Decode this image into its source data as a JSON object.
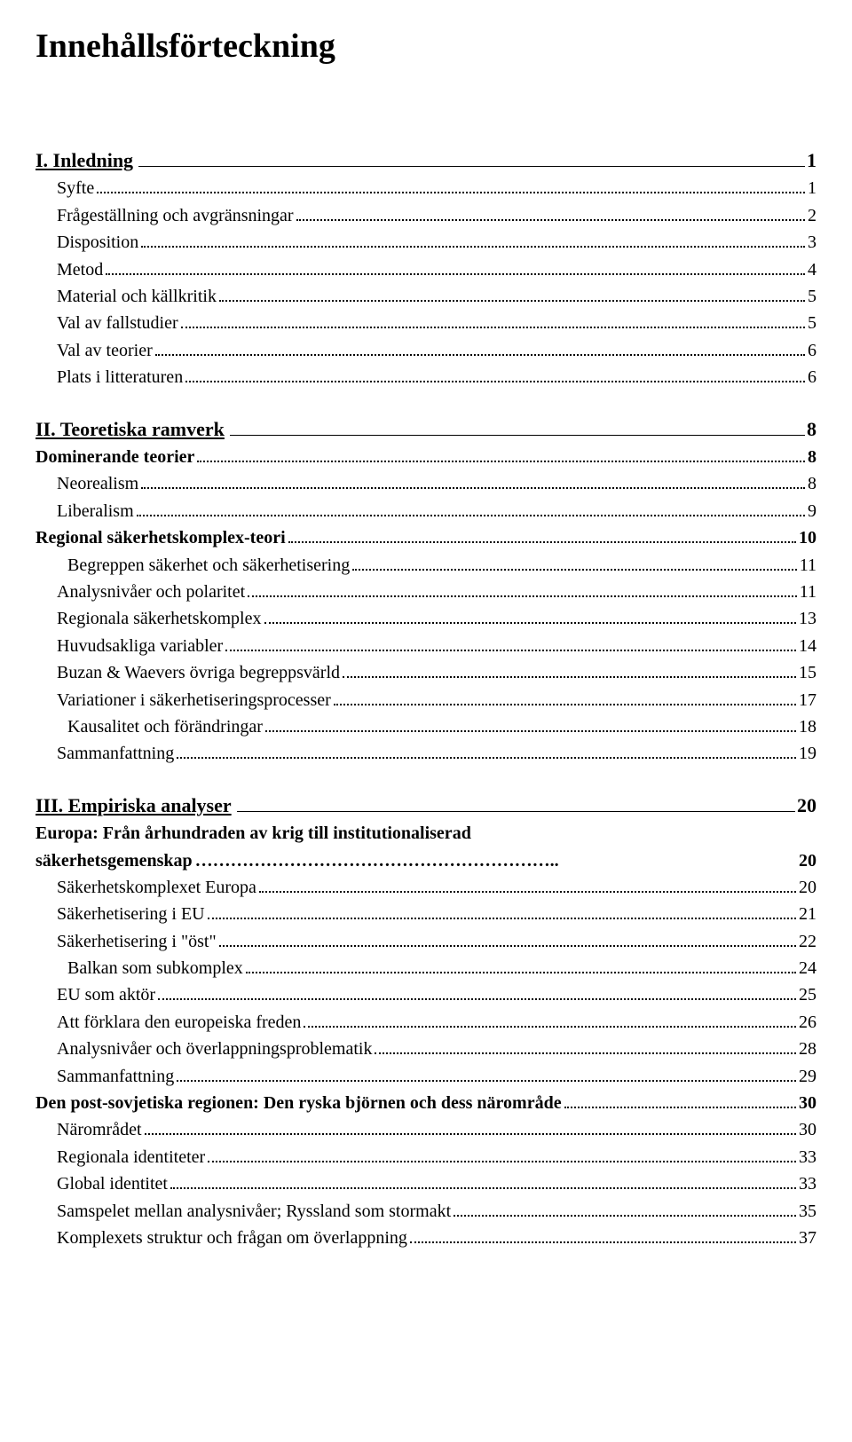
{
  "title": "Innehållsförteckning",
  "sections": [
    {
      "heading": {
        "roman": "I. Inledning",
        "page": "1"
      },
      "entries": [
        {
          "label": "Syfte",
          "page": "1",
          "indent": 1,
          "bold": false
        },
        {
          "label": "Frågeställning och avgränsningar",
          "page": "2",
          "indent": 1,
          "bold": false
        },
        {
          "label": "Disposition",
          "page": "3",
          "indent": 1,
          "bold": false
        },
        {
          "label": "Metod",
          "page": "4",
          "indent": 1,
          "bold": false
        },
        {
          "label": "Material och källkritik",
          "page": "5",
          "indent": 1,
          "bold": false
        },
        {
          "label": "Val av fallstudier",
          "page": "5",
          "indent": 1,
          "bold": false
        },
        {
          "label": "Val av teorier",
          "page": "6",
          "indent": 1,
          "bold": false
        },
        {
          "label": "Plats i litteraturen",
          "page": "6",
          "indent": 1,
          "bold": false
        }
      ]
    },
    {
      "heading": {
        "roman": "II. Teoretiska ramverk",
        "page": "8"
      },
      "entries": [
        {
          "label": "Dominerande teorier",
          "page": "8",
          "indent": 0,
          "bold": true
        },
        {
          "label": "Neorealism",
          "page": "8",
          "indent": 1,
          "bold": false
        },
        {
          "label": "Liberalism",
          "page": "9",
          "indent": 1,
          "bold": false
        },
        {
          "label": "Regional säkerhetskomplex-teori",
          "page": "10",
          "indent": 0,
          "bold": true
        },
        {
          "label": "Begreppen säkerhet och säkerhetisering",
          "page": "11",
          "indent": 2,
          "bold": false
        },
        {
          "label": "Analysnivåer och polaritet",
          "page": "11",
          "indent": 1,
          "bold": false
        },
        {
          "label": "Regionala säkerhetskomplex",
          "page": "13",
          "indent": 1,
          "bold": false
        },
        {
          "label": "Huvudsakliga variabler",
          "page": "14",
          "indent": 1,
          "bold": false
        },
        {
          "label": "Buzan & Waevers övriga begreppsvärld",
          "page": "15",
          "indent": 1,
          "bold": false
        },
        {
          "label": "Variationer i säkerhetiseringsprocesser",
          "page": "17",
          "indent": 1,
          "bold": false
        },
        {
          "label": "Kausalitet och förändringar",
          "page": "18",
          "indent": 2,
          "bold": false
        },
        {
          "label": "Sammanfattning",
          "page": "19",
          "indent": 1,
          "bold": false
        }
      ]
    },
    {
      "heading": {
        "roman": "III. Empiriska analyser",
        "page": "20"
      },
      "entries": [
        {
          "label": "Europa: Från århundraden av krig till institutionaliserad",
          "page": "",
          "indent": 0,
          "bold": true,
          "nodots": true
        },
        {
          "label": "säkerhetsgemenskap",
          "page": "20",
          "indent": 0,
          "bold": true,
          "trail": " ",
          "nodots": true,
          "dotsep": "…………………………………………………….."
        },
        {
          "label": "Säkerhetskomplexet Europa",
          "page": "20",
          "indent": 1,
          "bold": false
        },
        {
          "label": "Säkerhetisering i EU",
          "page": "21",
          "indent": 1,
          "bold": false
        },
        {
          "label": "Säkerhetisering i \"öst\"",
          "page": "22",
          "indent": 1,
          "bold": false
        },
        {
          "label": "Balkan som subkomplex",
          "page": "24",
          "indent": 2,
          "bold": false
        },
        {
          "label": "EU som aktör",
          "page": "25",
          "indent": 1,
          "bold": false
        },
        {
          "label": "Att förklara den europeiska freden",
          "page": "26",
          "indent": 1,
          "bold": false
        },
        {
          "label": "Analysnivåer och överlappningsproblematik",
          "page": "28",
          "indent": 1,
          "bold": false
        },
        {
          "label": "Sammanfattning",
          "page": "29",
          "indent": 1,
          "bold": false
        },
        {
          "label": "Den post-sovjetiska regionen: Den ryska björnen och dess närområde",
          "page": "30",
          "indent": 0,
          "bold": true
        },
        {
          "label": "Närområdet",
          "page": "30",
          "indent": 1,
          "bold": false
        },
        {
          "label": "Regionala identiteter",
          "page": "33",
          "indent": 1,
          "bold": false
        },
        {
          "label": "Global identitet",
          "page": "33",
          "indent": 1,
          "bold": false
        },
        {
          "label": "Samspelet mellan analysnivåer; Ryssland som stormakt",
          "page": "35",
          "indent": 1,
          "bold": false
        },
        {
          "label": "Komplexets struktur och frågan om överlappning",
          "page": "37",
          "indent": 1,
          "bold": false
        }
      ]
    }
  ]
}
